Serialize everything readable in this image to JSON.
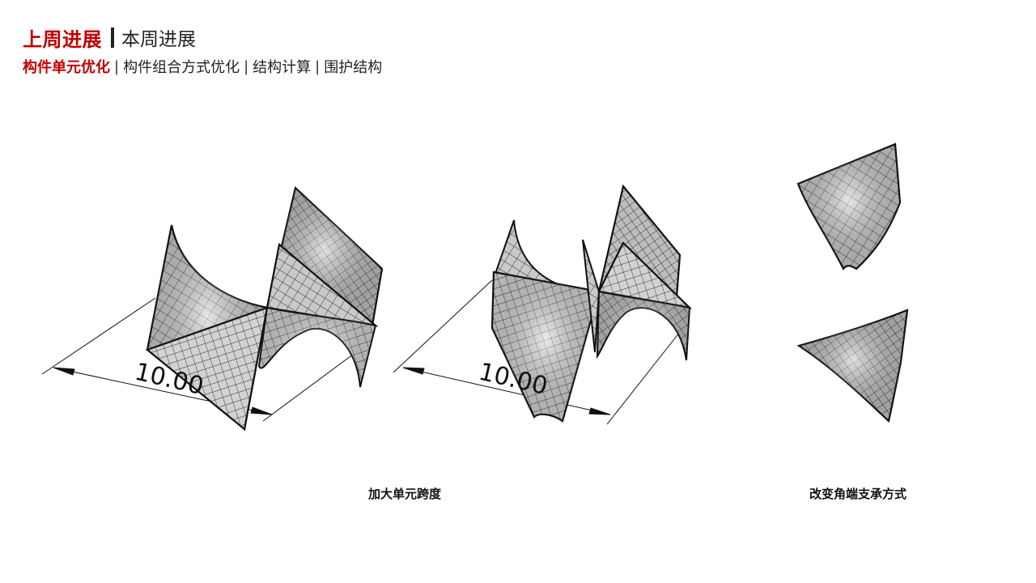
{
  "header": {
    "title_active": "上周进展",
    "title_other": "本周进展"
  },
  "subnav": {
    "items": [
      {
        "label": "构件单元优化",
        "active": true
      },
      {
        "label": "构件组合方式优化",
        "active": false
      },
      {
        "label": "结构计算",
        "active": false
      },
      {
        "label": "围护结构",
        "active": false
      }
    ],
    "separator": "|"
  },
  "figures": {
    "left_dimension": "10.00",
    "middle_dimension": "10.00"
  },
  "captions": {
    "span": "加大单元跨度",
    "support": "改变角端支承方式"
  },
  "colors": {
    "accent": "#c00000",
    "surface": "#c8c8c8",
    "grid": "#2a2a2a"
  }
}
